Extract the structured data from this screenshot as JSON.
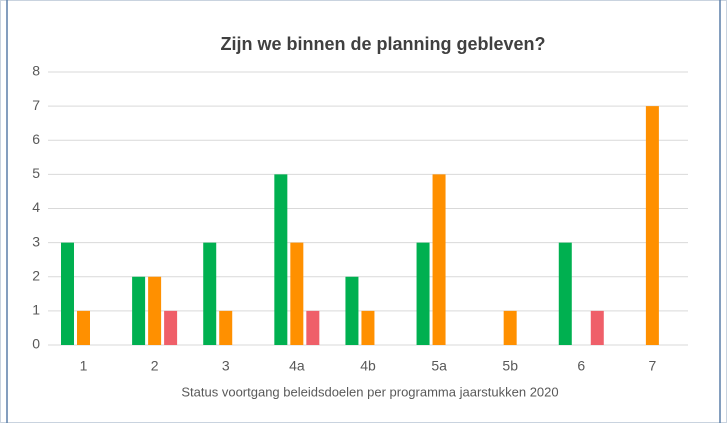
{
  "chart_data": {
    "type": "bar",
    "title": "Zijn we binnen de planning gebleven?",
    "x_label": "Status voortgang beleidsdoelen per programma jaarstukken 2020",
    "categories": [
      "1",
      "2",
      "3",
      "4a",
      "4b",
      "5a",
      "5b",
      "6",
      "7"
    ],
    "series": [
      {
        "color": "#00b050",
        "values": [
          3,
          2,
          3,
          5,
          2,
          3,
          0,
          3,
          0
        ]
      },
      {
        "color": "#ff9000",
        "values": [
          1,
          2,
          1,
          3,
          1,
          5,
          1,
          0,
          7
        ]
      },
      {
        "color": "#ef5f69",
        "values": [
          0,
          1,
          0,
          1,
          0,
          0,
          0,
          1,
          0
        ]
      }
    ],
    "ylim": [
      0,
      8
    ],
    "yticks": [
      0,
      1,
      2,
      3,
      4,
      5,
      6,
      7,
      8
    ],
    "grid": true
  }
}
